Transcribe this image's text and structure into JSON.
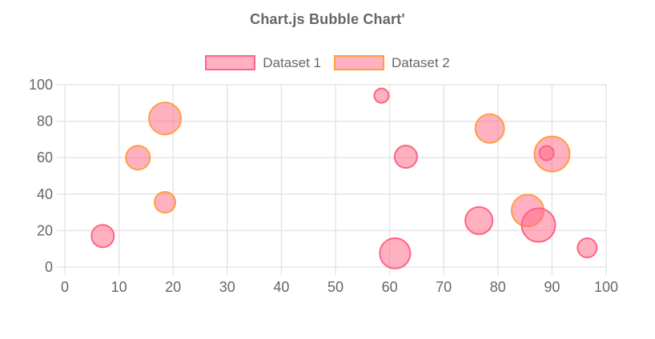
{
  "chart_data": {
    "type": "scatter",
    "subtype": "bubble",
    "title": "Chart.js Bubble Chart'",
    "xlabel": "",
    "ylabel": "",
    "xlim": [
      0,
      100
    ],
    "ylim": [
      0,
      100
    ],
    "x_ticks": [
      0,
      10,
      20,
      30,
      40,
      50,
      60,
      70,
      80,
      90,
      100
    ],
    "y_ticks": [
      0,
      20,
      40,
      60,
      80,
      100
    ],
    "grid": true,
    "grid_color": "#e5e5e5",
    "tick_color": "#666666",
    "title_color": "#666666",
    "legend_position": "top",
    "series": [
      {
        "name": "Dataset 1",
        "border_color": "#ff6384",
        "fill_color": "rgba(255,99,132,0.5)",
        "points": [
          {
            "x": 7,
            "y": 17,
            "r": 14
          },
          {
            "x": 58.5,
            "y": 94,
            "r": 9
          },
          {
            "x": 61,
            "y": 7.5,
            "r": 19
          },
          {
            "x": 63,
            "y": 60.5,
            "r": 14
          },
          {
            "x": 76.5,
            "y": 25.5,
            "r": 17
          },
          {
            "x": 87.5,
            "y": 23,
            "r": 21
          },
          {
            "x": 89,
            "y": 62.5,
            "r": 9
          },
          {
            "x": 96.5,
            "y": 10.5,
            "r": 12
          }
        ]
      },
      {
        "name": "Dataset 2",
        "border_color": "#ff9f40",
        "fill_color": "rgba(255,99,132,0.5)",
        "points": [
          {
            "x": 13.5,
            "y": 60,
            "r": 15
          },
          {
            "x": 18.5,
            "y": 81.5,
            "r": 20
          },
          {
            "x": 18.5,
            "y": 35.5,
            "r": 13
          },
          {
            "x": 78.5,
            "y": 76,
            "r": 18
          },
          {
            "x": 85.5,
            "y": 31,
            "r": 20
          },
          {
            "x": 90,
            "y": 62,
            "r": 22
          }
        ]
      }
    ]
  },
  "legend": {
    "items": [
      {
        "label": "Dataset 1"
      },
      {
        "label": "Dataset 2"
      }
    ]
  }
}
